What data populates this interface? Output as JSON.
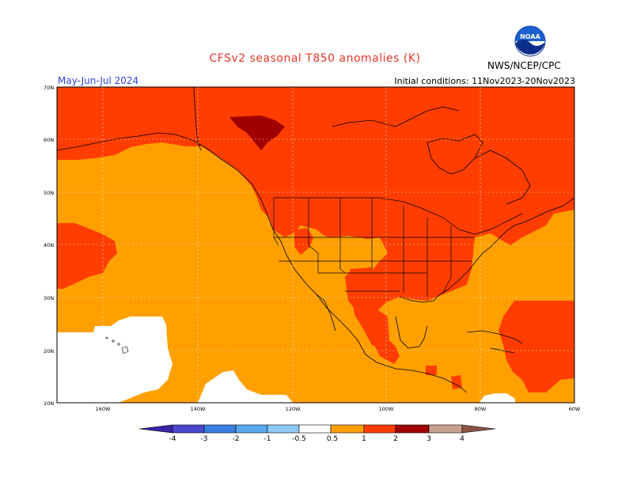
{
  "header": {
    "title": "CFSv2 seasonal T850 anomalies (K)",
    "period": "May-Jun-Jul 2024",
    "initial_conditions": "Initial conditions: 11Nov2023-20Nov2023",
    "agency": "NWS/NCEP/CPC",
    "logo_text": "NOAA"
  },
  "colors": {
    "title": "#e8372a",
    "period": "#3444d8",
    "light_anom": "#ffa000",
    "mid_anom": "#ff3d00",
    "high_anom": "#a00000",
    "neutral": "#ffffff"
  },
  "map": {
    "lat_labels": [
      "70N",
      "60N",
      "50N",
      "40N",
      "30N",
      "20N",
      "10N"
    ],
    "lon_labels": [
      "160W",
      "140W",
      "120W",
      "100W",
      "80W",
      "60W"
    ]
  },
  "colorbar": {
    "labels": [
      "-4",
      "-3",
      "-2",
      "-1",
      "-0.5",
      "0.5",
      "1",
      "2",
      "3",
      "4"
    ],
    "colors": [
      "#3a22a8",
      "#4b46cf",
      "#3a7fe0",
      "#5aa8ef",
      "#8cc8f8",
      "#ffffff",
      "#ffa000",
      "#ff3d00",
      "#a00000",
      "#c8a090",
      "#8a5444"
    ]
  }
}
